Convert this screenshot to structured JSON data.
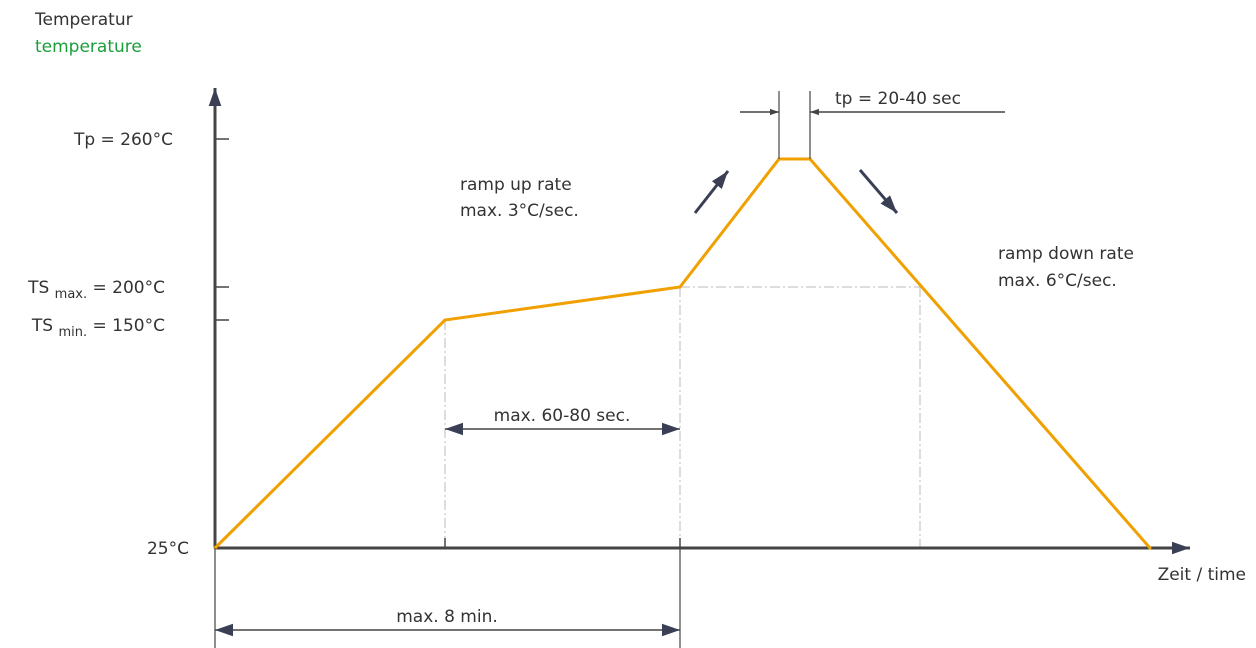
{
  "chart_data": {
    "type": "line",
    "title": "",
    "ylabel_de": "Temperatur",
    "ylabel_en": "temperature",
    "xlabel": "Zeit / time",
    "series": [
      {
        "points": [
          {
            "t": 0,
            "temp": 25
          },
          {
            "t": 4,
            "temp": 150
          },
          {
            "t": 8,
            "temp": 200
          },
          {
            "t": 9.8,
            "temp": 260
          },
          {
            "t": 10.35,
            "temp": 260
          },
          {
            "t": 16,
            "temp": 25
          }
        ]
      }
    ],
    "y_ticks": [
      {
        "value": 260,
        "label": "Tp = 260°C"
      },
      {
        "value": 200,
        "prefix": "TS",
        "sub": "max.",
        "suffix": "= 200°C"
      },
      {
        "value": 150,
        "prefix": "TS",
        "sub": "min.",
        "suffix": "= 150°C"
      },
      {
        "value": 25,
        "label": "25°C"
      }
    ],
    "annotations": {
      "ramp_up_line1": "ramp up rate",
      "ramp_up_line2": "max. 3°C/sec.",
      "ramp_down_line1": "ramp down rate",
      "ramp_down_line2": "max. 6°C/sec.",
      "tp_window": "tp = 20-40 sec",
      "soak_window": "max. 60-80 sec.",
      "total_window": "max. 8 min."
    },
    "colors": {
      "curve": "#f0a000",
      "axis": "#444444",
      "guide": "#bbbbbb",
      "arrow": "#3a3f55",
      "label_en": "#1a9e3a"
    },
    "legend": "none",
    "grid": false
  }
}
